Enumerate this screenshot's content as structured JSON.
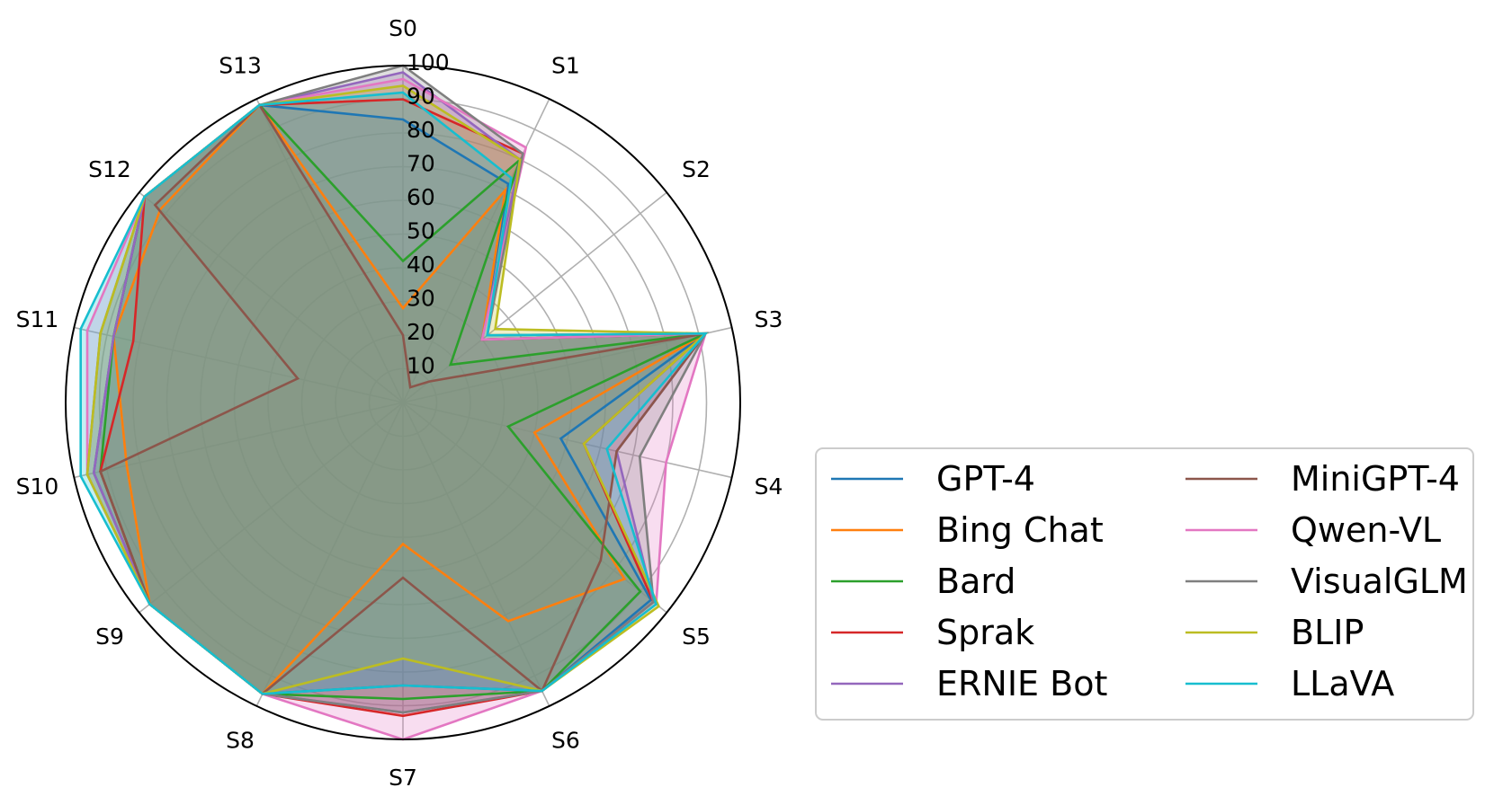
{
  "chart_data": {
    "type": "radar",
    "axes": [
      "S0",
      "S1",
      "S2",
      "S3",
      "S4",
      "S5",
      "S6",
      "S7",
      "S8",
      "S9",
      "S10",
      "S11",
      "S12",
      "S13"
    ],
    "radial_ticks": [
      10,
      20,
      30,
      40,
      50,
      60,
      70,
      80,
      90,
      100
    ],
    "rlim": [
      0,
      100
    ],
    "grid": true,
    "legend_position": "lower-right",
    "legend_columns": 2,
    "series": [
      {
        "name": "GPT-4",
        "color": "#1f77b4",
        "values": [
          84,
          72,
          30,
          92,
          48,
          94,
          95,
          84,
          96,
          96,
          94,
          88,
          98,
          98
        ]
      },
      {
        "name": "Bing Chat",
        "color": "#ff7f0e",
        "values": [
          28,
          70,
          30,
          92,
          40,
          84,
          72,
          42,
          96,
          96,
          84,
          88,
          92,
          98
        ]
      },
      {
        "name": "Bard",
        "color": "#2ca02c",
        "values": [
          42,
          80,
          18,
          92,
          32,
          90,
          95,
          88,
          96,
          96,
          92,
          88,
          98,
          98
        ]
      },
      {
        "name": "Sprak",
        "color": "#d62728",
        "values": [
          90,
          82,
          30,
          92,
          55,
          95,
          95,
          93,
          96,
          96,
          92,
          82,
          98,
          98
        ]
      },
      {
        "name": "ERNIE Bot",
        "color": "#9467bd",
        "values": [
          98,
          80,
          30,
          92,
          65,
          95,
          95,
          92,
          96,
          96,
          94,
          88,
          98,
          98
        ]
      },
      {
        "name": "MiniGPT-4",
        "color": "#8c564b",
        "values": [
          20,
          5,
          10,
          92,
          65,
          75,
          95,
          52,
          96,
          96,
          92,
          32,
          94,
          98
        ]
      },
      {
        "name": "Qwen-VL",
        "color": "#e377c2",
        "values": [
          96,
          84,
          30,
          92,
          80,
          96,
          95,
          100,
          96,
          96,
          96,
          96,
          98,
          98
        ]
      },
      {
        "name": "VisualGLM",
        "color": "#7f7f7f",
        "values": [
          100,
          82,
          32,
          92,
          72,
          95,
          95,
          92,
          96,
          96,
          96,
          92,
          98,
          98
        ]
      },
      {
        "name": "BLIP",
        "color": "#bcbd22",
        "values": [
          94,
          80,
          35,
          92,
          55,
          97,
          95,
          76,
          96,
          96,
          96,
          92,
          98,
          98
        ]
      },
      {
        "name": "LLaVA",
        "color": "#17becf",
        "values": [
          92,
          74,
          32,
          92,
          62,
          96,
          95,
          84,
          96,
          96,
          98,
          98,
          98,
          98
        ]
      }
    ]
  }
}
